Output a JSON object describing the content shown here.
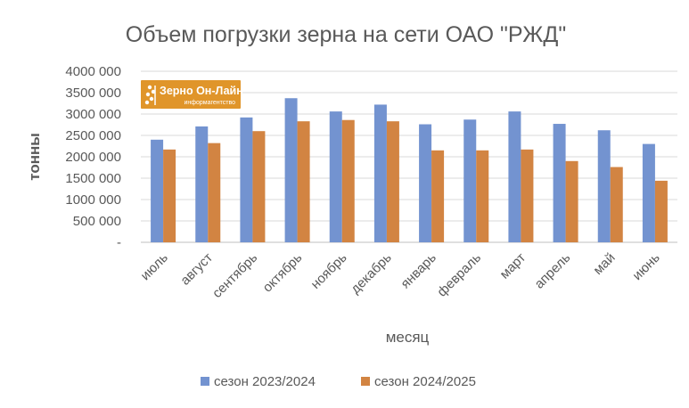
{
  "chart_data": {
    "type": "bar",
    "title": "Объем погрузки зерна на сети ОАО \"РЖД\"",
    "xlabel": "месяц",
    "ylabel": "тонны",
    "ylim": [
      0,
      4000000
    ],
    "yticks": [
      {
        "value": 0,
        "label": "-"
      },
      {
        "value": 500000,
        "label": "500 000"
      },
      {
        "value": 1000000,
        "label": "1000 000"
      },
      {
        "value": 1500000,
        "label": "1500 000"
      },
      {
        "value": 2000000,
        "label": "2000 000"
      },
      {
        "value": 2500000,
        "label": "2500 000"
      },
      {
        "value": 3000000,
        "label": "3000 000"
      },
      {
        "value": 3500000,
        "label": "3500 000"
      },
      {
        "value": 4000000,
        "label": "4000 000"
      }
    ],
    "grid": true,
    "legend_position": "bottom",
    "categories": [
      "июль",
      "август",
      "сентябрь",
      "октябрь",
      "ноябрь",
      "декабрь",
      "январь",
      "февраль",
      "март",
      "апрель",
      "май",
      "июнь"
    ],
    "series": [
      {
        "name": "сезон 2023/2024",
        "color": "#7393d0",
        "values": [
          2400000,
          2710000,
          2920000,
          3370000,
          3060000,
          3220000,
          2760000,
          2870000,
          3060000,
          2770000,
          2620000,
          2300000
        ]
      },
      {
        "name": "сезон 2024/2025",
        "color": "#d28442",
        "values": [
          2170000,
          2320000,
          2600000,
          2830000,
          2860000,
          2830000,
          2150000,
          2150000,
          2170000,
          1900000,
          1760000,
          1440000
        ]
      }
    ]
  },
  "logo": {
    "line1": "Зерно Он-Лайн",
    "line2": "информагентство",
    "background": "#e0952a",
    "text_color": "#ffffff"
  },
  "colors": {
    "title": "#595959",
    "text": "#595959",
    "gridline": "#d9d9d9",
    "axis": "#bfbfbf"
  }
}
